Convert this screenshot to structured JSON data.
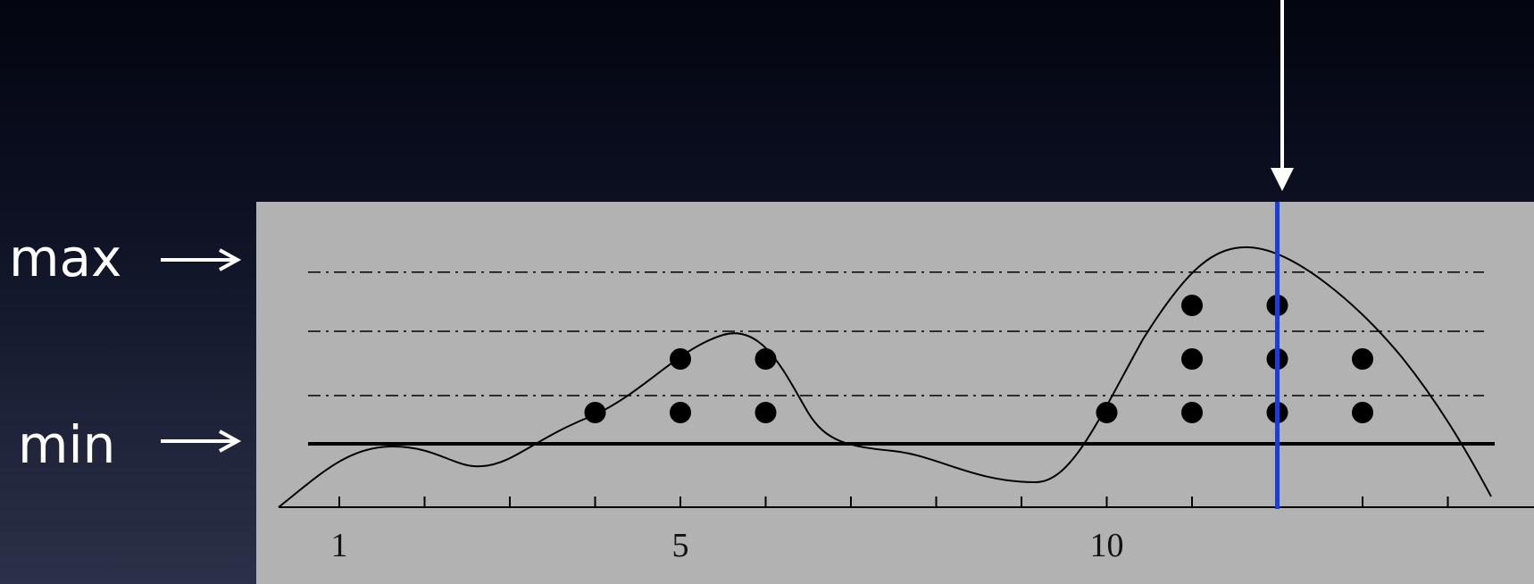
{
  "labels": {
    "max": "max",
    "min": "min"
  },
  "axis": {
    "ticks": [
      1,
      2,
      3,
      4,
      5,
      6,
      7,
      8,
      9,
      10,
      11,
      12,
      13,
      14
    ],
    "tick_labels": [
      "1",
      "5",
      "10"
    ]
  },
  "colors": {
    "panel": "#b2b2b2",
    "cursor": "#1e3ed2",
    "ink": "#000000",
    "arrow": "#ffffff"
  },
  "levels": {
    "min": 0,
    "max": 4,
    "dashed": [
      1,
      2,
      3,
      4
    ]
  },
  "dots": [
    {
      "x": 4,
      "y": 1
    },
    {
      "x": 5,
      "y": 1
    },
    {
      "x": 5,
      "y": 2
    },
    {
      "x": 6,
      "y": 1
    },
    {
      "x": 6,
      "y": 2
    },
    {
      "x": 10,
      "y": 1
    },
    {
      "x": 11,
      "y": 1
    },
    {
      "x": 11,
      "y": 2
    },
    {
      "x": 11,
      "y": 3
    },
    {
      "x": 12,
      "y": 1
    },
    {
      "x": 12,
      "y": 2
    },
    {
      "x": 12,
      "y": 3
    },
    {
      "x": 13,
      "y": 1
    },
    {
      "x": 13,
      "y": 2
    }
  ],
  "cursor_x": 12
}
